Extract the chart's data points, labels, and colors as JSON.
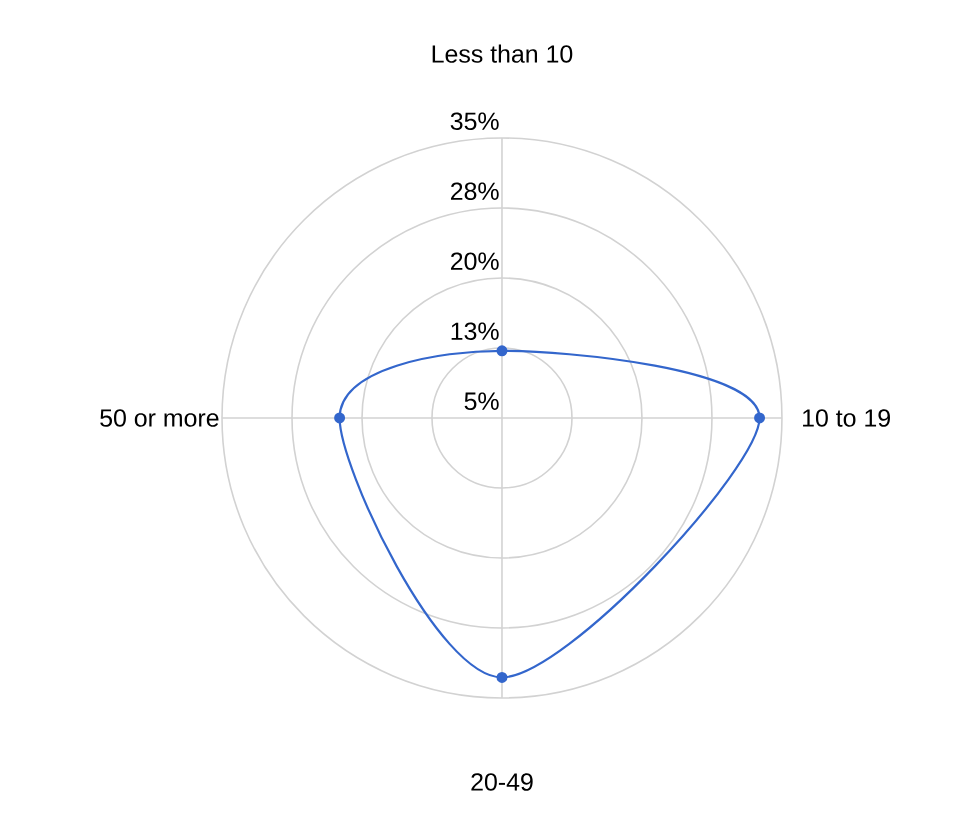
{
  "chart_data": {
    "type": "radar",
    "categories": [
      "Less than 10",
      "10 to 19",
      "20-49",
      "50 or more"
    ],
    "series": [
      {
        "color": "#3366cc",
        "values": [
          12.2,
          32.6,
          32.8,
          22.4
        ]
      }
    ],
    "ylim": [
      5,
      35
    ],
    "yticks": [
      {
        "value": 5,
        "label": "5%"
      },
      {
        "value": 12.5,
        "label": "13%"
      },
      {
        "value": 20,
        "label": "20%"
      },
      {
        "value": 27.5,
        "label": "28%"
      },
      {
        "value": 35,
        "label": "35%"
      }
    ],
    "grid": true,
    "marker": "circle"
  }
}
